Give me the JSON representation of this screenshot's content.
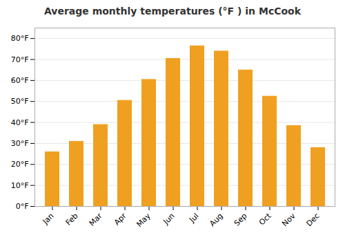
{
  "chart_data": {
    "type": "bar",
    "title": "Average monthly temperatures (°F ) in McCook",
    "categories": [
      "Jan",
      "Feb",
      "Mar",
      "Apr",
      "May",
      "Jun",
      "Jul",
      "Aug",
      "Sep",
      "Oct",
      "Nov",
      "Dec"
    ],
    "values": [
      26,
      31,
      39,
      50.5,
      60.5,
      70.5,
      76.5,
      74,
      65,
      52.5,
      38.5,
      28
    ],
    "color": "#F0A020",
    "ylim": [
      0,
      85
    ],
    "yticks": [
      {
        "value": 0,
        "label": "0°F"
      },
      {
        "value": 10,
        "label": "10°F"
      },
      {
        "value": 20,
        "label": "20°F"
      },
      {
        "value": 30,
        "label": "30°F"
      },
      {
        "value": 40,
        "label": "40°F"
      },
      {
        "value": 50,
        "label": "50°F"
      },
      {
        "value": 60,
        "label": "60°F"
      },
      {
        "value": 70,
        "label": "70°F"
      },
      {
        "value": 80,
        "label": "80°F"
      }
    ],
    "grid": true
  }
}
